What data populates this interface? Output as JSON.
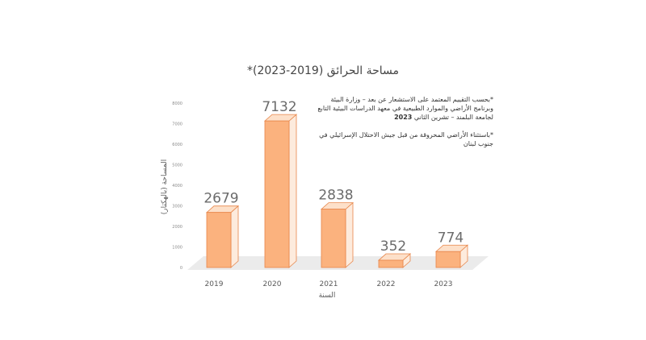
{
  "chart_data": {
    "type": "bar",
    "title": "مساحة الحرائق (2019-2023)*",
    "xlabel": "السنة",
    "ylabel": "المساحة (بالهكتار)",
    "categories": [
      "2019",
      "2020",
      "2021",
      "2022",
      "2023"
    ],
    "values": [
      2679,
      7132,
      2838,
      352,
      774
    ],
    "data_labels": [
      "2679",
      "7132",
      "2838",
      "352",
      "774"
    ],
    "ylim": [
      0,
      8000
    ],
    "yticks": [
      "0",
      "1000",
      "2000",
      "3000",
      "4000",
      "5000",
      "6000",
      "7000",
      "8000"
    ],
    "grid": false,
    "bar_style": "3d",
    "colors": {
      "bar_front": "#fbb27e",
      "bar_top": "#fde0c9",
      "bar_side": "#fdebdd",
      "bar_edge": "#e8864a",
      "floor": "#ebebeb",
      "axis_text": "#595959",
      "data_label": "#6b6b6b"
    },
    "notes": [
      {
        "text": "*بحسب التقييم المعتمد على الاستشعار عن بعد – وزارة البيئة وبرنامج الأراضي والموارد الطبيعية في معهد الدراسات البيئية التابع لجامعة البلمند – تشرين الثاني",
        "year": "2023"
      },
      {
        "text": "*باستثناء الأراضي المحروقة من قبل جيش الاحتلال الإسرائيلي في جنوب لبنان",
        "year": ""
      }
    ]
  }
}
